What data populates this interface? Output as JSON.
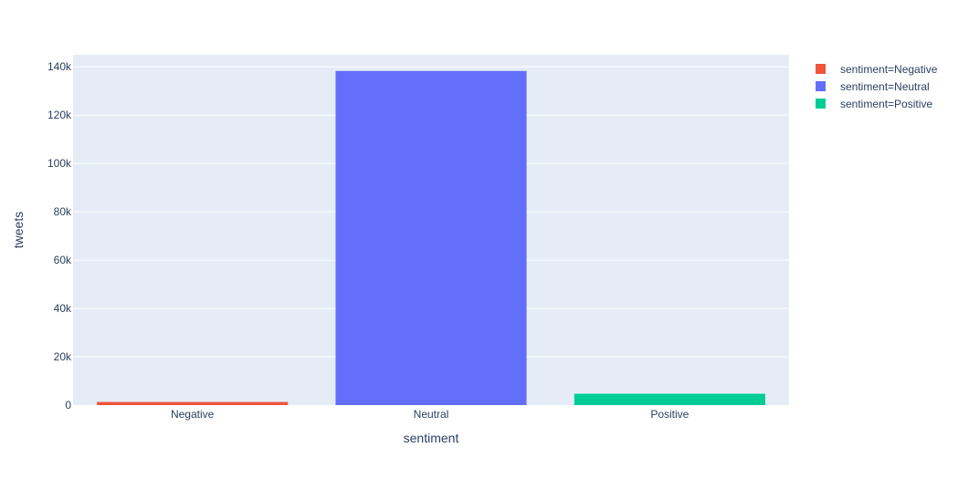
{
  "chart_data": {
    "type": "bar",
    "categories": [
      "Negative",
      "Neutral",
      "Positive"
    ],
    "series": [
      {
        "name": "sentiment=Negative",
        "category": "Negative",
        "value": 1300,
        "color": "#EF553B"
      },
      {
        "name": "sentiment=Neutral",
        "category": "Neutral",
        "value": 138300,
        "color": "#636EFA"
      },
      {
        "name": "sentiment=Positive",
        "category": "Positive",
        "value": 4700,
        "color": "#00CC96"
      }
    ],
    "xlabel": "sentiment",
    "ylabel": "tweets",
    "ylim": [
      0,
      145000
    ],
    "yticks": [
      0,
      20000,
      40000,
      60000,
      80000,
      100000,
      120000,
      140000
    ],
    "ytick_labels": [
      "0",
      "20k",
      "40k",
      "60k",
      "80k",
      "100k",
      "120k",
      "140k"
    ],
    "grid": true,
    "legend_position": "top-right",
    "plot_background": "#E5ECF6"
  }
}
